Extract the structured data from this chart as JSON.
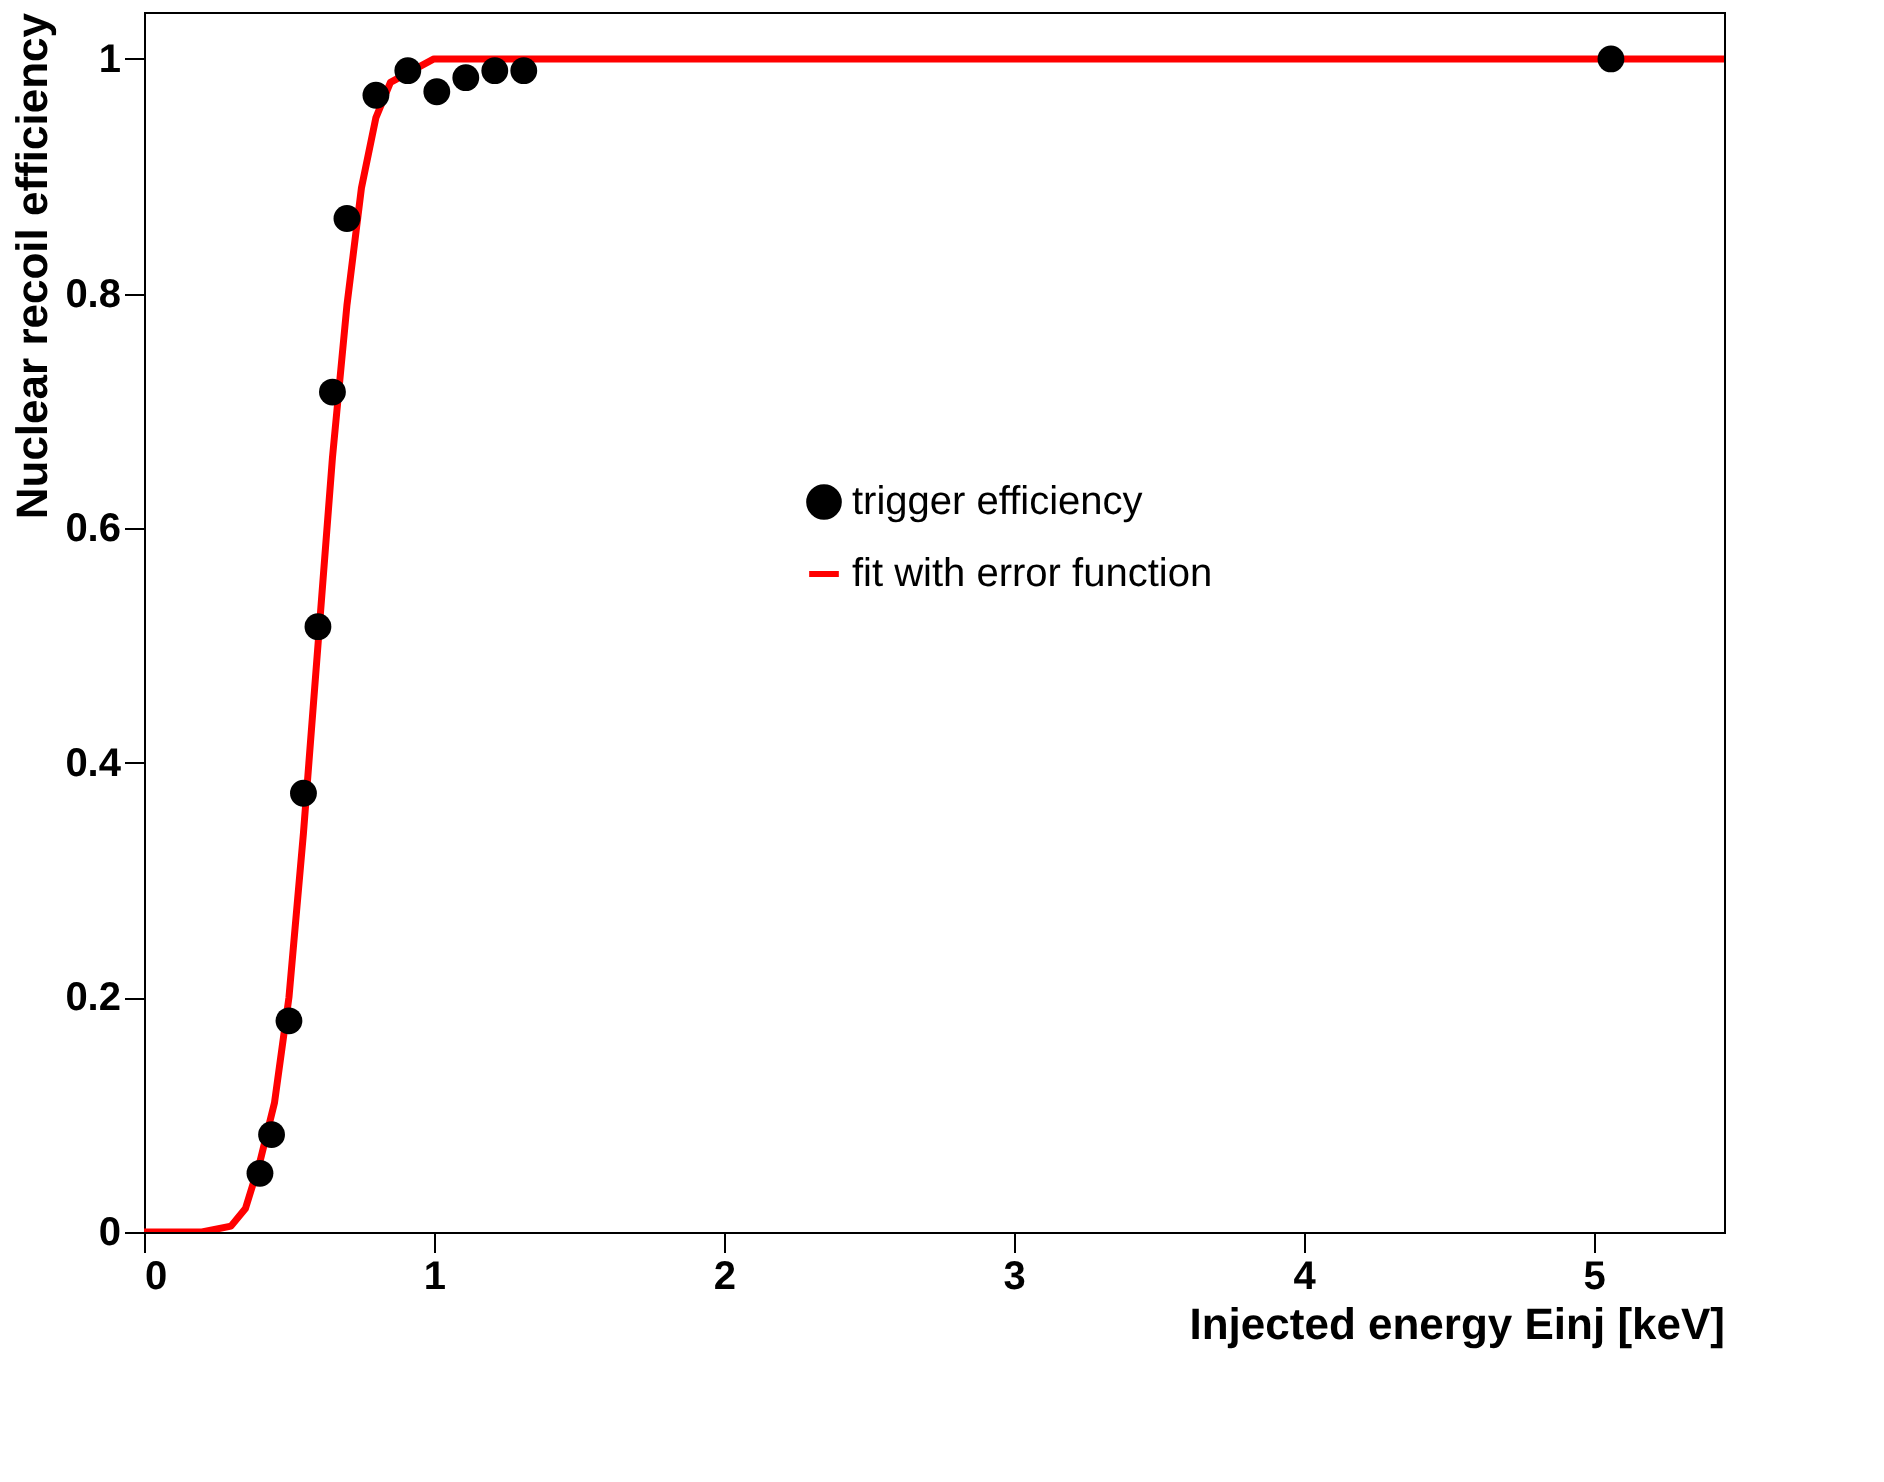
{
  "chart_data": {
    "type": "scatter",
    "xlabel": "Injected energy Einj [keV]",
    "ylabel": "Nuclear recoil efficiency",
    "xlim": [
      0,
      5.45
    ],
    "xticks": [
      0,
      1,
      2,
      3,
      4,
      5
    ],
    "ylim": [
      0,
      1.04
    ],
    "yticks": [
      0,
      0.2,
      0.4,
      0.6,
      0.8,
      1
    ],
    "grid": false,
    "legend": "right",
    "series": [
      {
        "name": "trigger efficiency",
        "marker": "circle",
        "color": "#000000",
        "x": [
          0.4,
          0.44,
          0.5,
          0.55,
          0.6,
          0.65,
          0.7,
          0.8,
          0.91,
          1.01,
          1.11,
          1.21,
          1.31,
          5.06
        ],
        "values": [
          0.05,
          0.083,
          0.18,
          0.374,
          0.516,
          0.716,
          0.864,
          0.969,
          0.99,
          0.972,
          0.984,
          0.99,
          0.99,
          1.0
        ]
      },
      {
        "name": "fit with error function",
        "type": "line",
        "color": "#ff0000",
        "line_style": "solid",
        "x": [
          0,
          0.2,
          0.3,
          0.35,
          0.4,
          0.45,
          0.5,
          0.55,
          0.6,
          0.65,
          0.7,
          0.75,
          0.8,
          0.85,
          1.0,
          1.2,
          5.45
        ],
        "values": [
          0,
          0.0,
          0.005,
          0.02,
          0.06,
          0.11,
          0.2,
          0.34,
          0.5,
          0.66,
          0.79,
          0.89,
          0.95,
          0.98,
          1.0,
          1.0,
          1.0
        ]
      }
    ]
  }
}
